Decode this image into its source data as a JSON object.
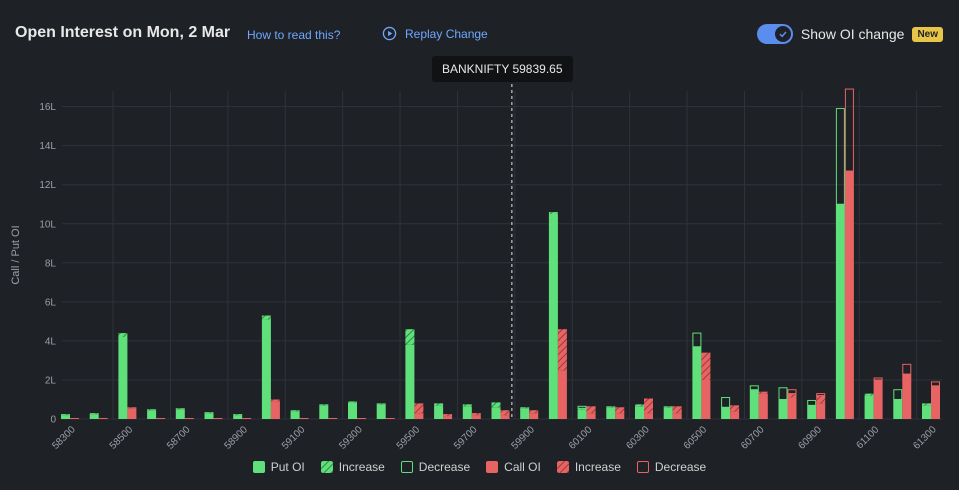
{
  "header": {
    "title": "Open Interest on Mon, 2 Mar",
    "how_to_read": "How to read this?",
    "replay": "Replay Change",
    "toggle_label": "Show OI change",
    "badge": "New"
  },
  "tooltip": {
    "text": "BANKNIFTY 59839.65"
  },
  "colors": {
    "put": "#5fe07a",
    "call": "#e86464",
    "grid": "#2f333a",
    "axis_text": "#9aa0a6",
    "accent": "#5b8def"
  },
  "legend": {
    "put_oi": "Put OI",
    "put_increase": "Increase",
    "put_decrease": "Decrease",
    "call_oi": "Call OI",
    "call_increase": "Increase",
    "call_decrease": "Decrease"
  },
  "chart_data": {
    "type": "bar",
    "ylabel": "Call / Put OI",
    "ylim": [
      0,
      16.8
    ],
    "yticks": [
      0,
      2,
      4,
      6,
      8,
      10,
      12,
      14,
      16
    ],
    "ytick_labels": [
      "0",
      "2L",
      "4L",
      "6L",
      "8L",
      "10L",
      "12L",
      "14L",
      "16L"
    ],
    "x_tick_labels": [
      "58300",
      "58500",
      "58700",
      "58900",
      "59100",
      "59300",
      "59500",
      "59700",
      "59900",
      "60100",
      "60300",
      "60500",
      "60700",
      "60900",
      "61100",
      "61300"
    ],
    "spot": 59839.65,
    "strikes": [
      58300,
      58400,
      58500,
      58600,
      58700,
      58800,
      58900,
      59000,
      59100,
      59200,
      59300,
      59400,
      59500,
      59600,
      59700,
      59800,
      59900,
      60000,
      60100,
      60200,
      60300,
      60400,
      60500,
      60600,
      60700,
      60800,
      60900,
      61000,
      61100,
      61200,
      61300
    ],
    "put_base": [
      0.2,
      0.25,
      4.2,
      0.45,
      0.5,
      0.3,
      0.2,
      5.1,
      0.4,
      0.7,
      0.85,
      0.75,
      3.8,
      0.7,
      0.65,
      0.6,
      0.55,
      10.5,
      0.5,
      0.6,
      0.65,
      0.6,
      3.7,
      0.6,
      1.5,
      1.0,
      0.7,
      11.0,
      1.2,
      1.0,
      0.7
    ],
    "put_change": [
      0.05,
      0.05,
      0.2,
      0.05,
      0.05,
      0.05,
      0.05,
      0.2,
      0.05,
      0.05,
      0.05,
      0.05,
      0.8,
      0.1,
      0.1,
      0.25,
      0.05,
      0.1,
      0.05,
      0.05,
      0.1,
      0.05,
      0.0,
      0.0,
      0.0,
      0.0,
      0.0,
      0.0,
      0.1,
      0.0,
      0.1
    ],
    "put_decrease": [
      0,
      0,
      0,
      0,
      0,
      0,
      0,
      0,
      0,
      0,
      0,
      0,
      0,
      0,
      0,
      0,
      0,
      0,
      0.1,
      0,
      0,
      0,
      0.7,
      0.5,
      0.2,
      0.6,
      0.25,
      4.9,
      0,
      0.5,
      0
    ],
    "call_base": [
      0.05,
      0.05,
      0.55,
      0.05,
      0.05,
      0.05,
      0.05,
      0.9,
      0.05,
      0.05,
      0.05,
      0.05,
      0.3,
      0.15,
      0.2,
      0.2,
      0.3,
      2.5,
      0.3,
      0.3,
      0.3,
      0.3,
      2.0,
      0.4,
      1.3,
      1.1,
      0.8,
      12.7,
      2.0,
      2.3,
      1.7
    ],
    "call_change": [
      0,
      0,
      0.05,
      0,
      0,
      0,
      0,
      0.1,
      0,
      0,
      0,
      0,
      0.5,
      0.1,
      0.1,
      0.25,
      0.15,
      2.1,
      0.35,
      0.3,
      0.75,
      0.35,
      1.4,
      0.3,
      0.1,
      0.2,
      0.4,
      0,
      0,
      0,
      0
    ],
    "call_decrease": [
      0,
      0,
      0,
      0,
      0,
      0,
      0,
      0,
      0,
      0,
      0,
      0,
      0,
      0,
      0,
      0,
      0,
      0,
      0,
      0,
      0,
      0,
      0,
      0,
      0,
      0.2,
      0.1,
      4.2,
      0.1,
      0.5,
      0.2
    ]
  }
}
